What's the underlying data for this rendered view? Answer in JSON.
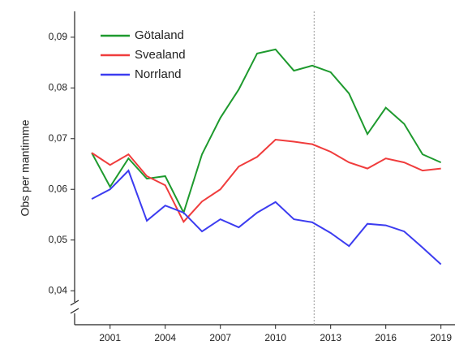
{
  "chart_data": {
    "type": "line",
    "ylabel": "Obs per mantimme",
    "x": [
      2000,
      2001,
      2002,
      2003,
      2004,
      2005,
      2006,
      2007,
      2008,
      2009,
      2010,
      2011,
      2012,
      2013,
      2014,
      2015,
      2016,
      2017,
      2018,
      2019
    ],
    "series": [
      {
        "name": "Götaland",
        "color": "#1e9a2e",
        "values": [
          0.0672,
          0.0605,
          0.0661,
          0.0621,
          0.0626,
          0.0554,
          0.0669,
          0.0741,
          0.0797,
          0.0868,
          0.0876,
          0.0834,
          0.0844,
          0.0831,
          0.0789,
          0.0709,
          0.0761,
          0.0729,
          0.0669,
          0.0653
        ]
      },
      {
        "name": "Svealand",
        "color": "#f03c3c",
        "values": [
          0.0672,
          0.0648,
          0.0669,
          0.0626,
          0.0608,
          0.0536,
          0.0576,
          0.06,
          0.0645,
          0.0664,
          0.0698,
          0.0694,
          0.0689,
          0.0674,
          0.0653,
          0.0641,
          0.0661,
          0.0653,
          0.0637,
          0.0641
        ]
      },
      {
        "name": "Norrland",
        "color": "#3c3cf0",
        "values": [
          0.0581,
          0.06,
          0.0637,
          0.0538,
          0.0568,
          0.0554,
          0.0517,
          0.0541,
          0.0525,
          0.0554,
          0.0575,
          0.0541,
          0.0535,
          0.0514,
          0.0488,
          0.0532,
          0.0529,
          0.0517,
          0.0485,
          0.0452
        ]
      }
    ],
    "xlim": [
      1999.07,
      2019.5
    ],
    "xticks": [
      2001,
      2004,
      2007,
      2010,
      2013,
      2016,
      2019
    ],
    "ylim": [
      0.0333,
      0.0951
    ],
    "yticks": [
      {
        "value": 0.04,
        "label": "0,04"
      },
      {
        "value": 0.05,
        "label": "0,05"
      },
      {
        "value": 0.06,
        "label": "0,06"
      },
      {
        "value": 0.07,
        "label": "0,07"
      },
      {
        "value": 0.08,
        "label": "0,08"
      },
      {
        "value": 0.09,
        "label": "0,09"
      }
    ],
    "vline": 2012.1,
    "legend": "top-left"
  }
}
